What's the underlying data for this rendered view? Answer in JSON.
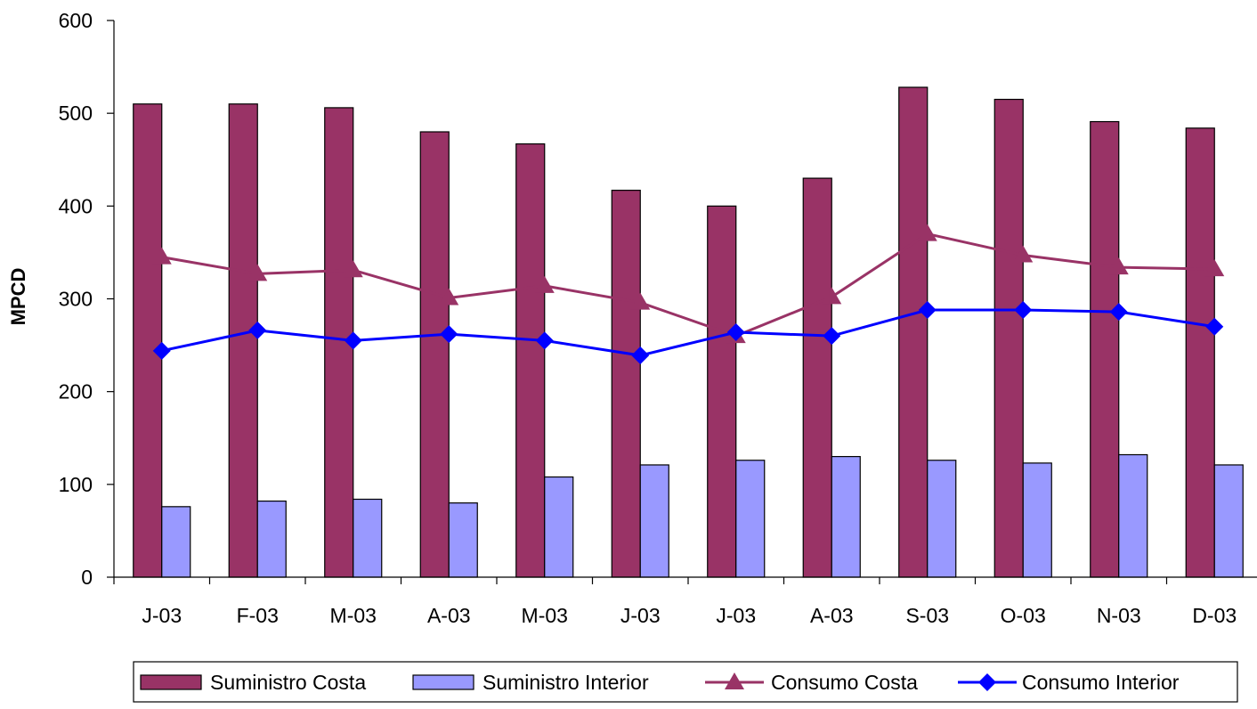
{
  "chart_data": {
    "type": "bar",
    "categories": [
      "J-03",
      "F-03",
      "M-03",
      "A-03",
      "M-03",
      "J-03",
      "J-03",
      "A-03",
      "S-03",
      "O-03",
      "N-03",
      "D-03"
    ],
    "ylabel": "MPCD",
    "ylim": [
      0,
      600
    ],
    "yticks": [
      0,
      100,
      200,
      300,
      400,
      500,
      600
    ],
    "grid": false,
    "legend_position": "bottom",
    "series": [
      {
        "name": "Suministro Costa",
        "kind": "bar",
        "color": "#993366",
        "values": [
          510,
          510,
          506,
          480,
          467,
          417,
          400,
          430,
          528,
          515,
          491,
          484
        ]
      },
      {
        "name": "Suministro Interior",
        "kind": "bar",
        "color": "#9999FF",
        "values": [
          76,
          82,
          84,
          80,
          108,
          121,
          126,
          130,
          126,
          123,
          132,
          121
        ]
      },
      {
        "name": "Consumo Costa",
        "kind": "line",
        "marker": "triangle",
        "color": "#993366",
        "values": [
          345,
          327,
          331,
          301,
          314,
          296,
          260,
          302,
          370,
          347,
          334,
          332
        ]
      },
      {
        "name": "Consumo Interior",
        "kind": "line",
        "marker": "diamond",
        "color": "#0000FF",
        "values": [
          244,
          266,
          255,
          262,
          255,
          239,
          264,
          260,
          288,
          288,
          286,
          270
        ]
      }
    ]
  }
}
